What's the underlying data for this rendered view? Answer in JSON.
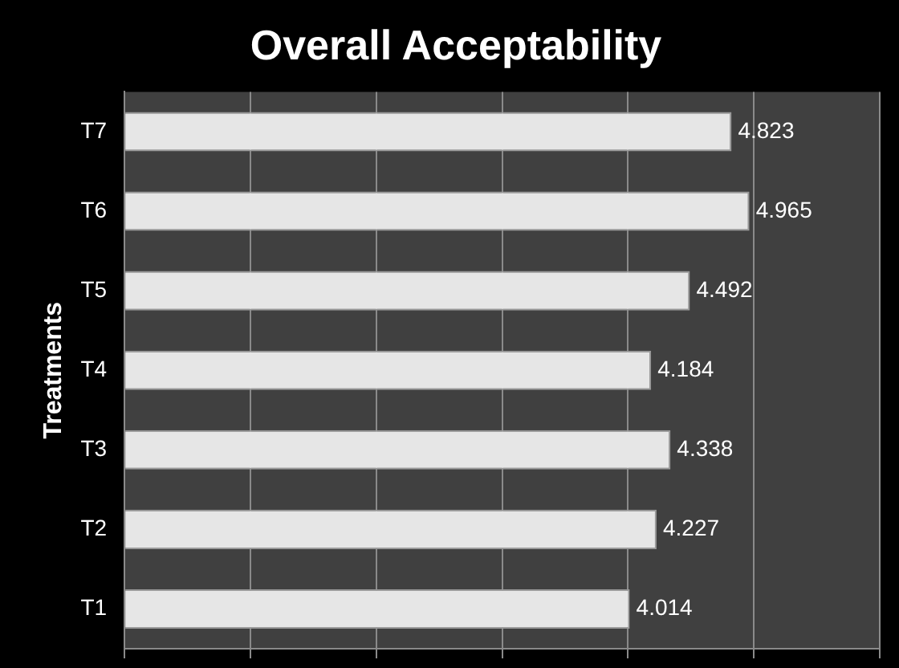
{
  "chart_data": {
    "type": "bar",
    "orientation": "horizontal",
    "title": "Overall Acceptability",
    "ylabel": "Treatments",
    "categories": [
      "T7",
      "T6",
      "T5",
      "T4",
      "T3",
      "T2",
      "T1"
    ],
    "values": [
      4.823,
      4.965,
      4.492,
      4.184,
      4.338,
      4.227,
      4.014
    ],
    "color": "#e6e6e6",
    "xlim": [
      0,
      6
    ],
    "xticks": [
      {
        "value": 0,
        "label": null
      },
      {
        "value": 1,
        "label": null
      },
      {
        "value": 2,
        "label": null
      },
      {
        "value": 3,
        "label": null
      },
      {
        "value": 4,
        "label": null
      },
      {
        "value": 5,
        "label": null
      },
      {
        "value": 6,
        "label": null
      }
    ],
    "tick_labels": "y",
    "grid": "x",
    "data_labels": true,
    "legend": false
  }
}
